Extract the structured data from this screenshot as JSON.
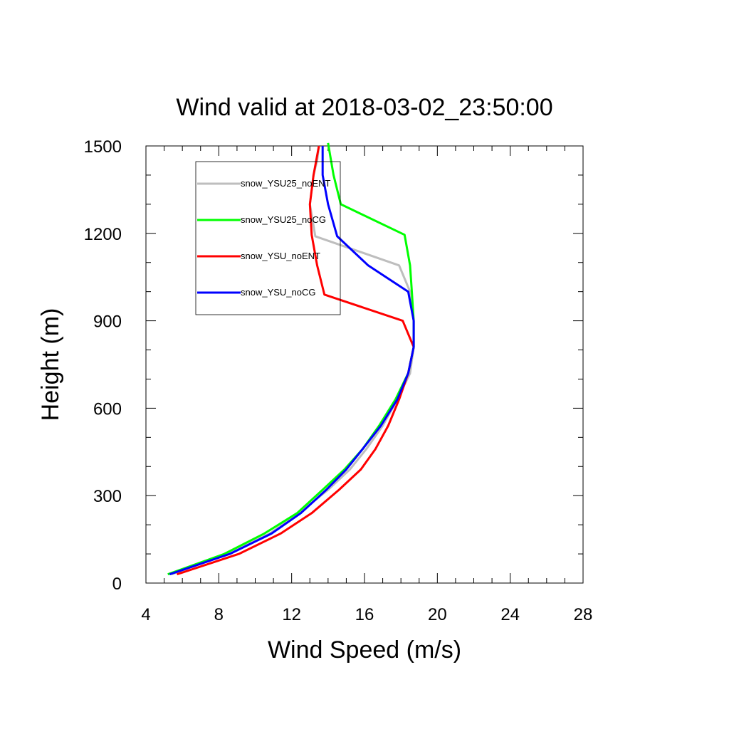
{
  "chart_data": {
    "type": "line",
    "title": "Wind valid at 2018-03-02_23:50:00",
    "xlabel": "Wind Speed (m/s)",
    "ylabel": "Height (m)",
    "xlim": [
      4,
      28
    ],
    "ylim": [
      0,
      1500
    ],
    "xticks": [
      4,
      8,
      12,
      16,
      20,
      24,
      28
    ],
    "yticks": [
      0,
      300,
      600,
      900,
      1200,
      1500
    ],
    "legend_position": "top-left inside",
    "grid": false,
    "series": [
      {
        "name": "snow_YSU25_noENT",
        "color": "#bebebe",
        "x": [
          5.4,
          8.5,
          10.8,
          12.4,
          14.0,
          15.2,
          16.1,
          17.0,
          17.8,
          18.5,
          18.7,
          18.7,
          18.5,
          17.9,
          13.3,
          13.0,
          13.2,
          13.4,
          13.5
        ],
        "y": [
          30,
          100,
          170,
          240,
          320,
          390,
          460,
          540,
          630,
          720,
          810,
          900,
          1000,
          1090,
          1190,
          1300,
          1400,
          1450,
          1500
        ]
      },
      {
        "name": "snow_YSU25_noCG",
        "color": "#00ff00",
        "x": [
          5.2,
          8.3,
          10.5,
          12.3,
          13.7,
          14.9,
          15.9,
          16.8,
          17.7,
          18.4,
          18.7,
          18.7,
          18.6,
          18.5,
          18.2,
          14.7,
          14.3,
          14.0
        ],
        "y": [
          30,
          100,
          170,
          240,
          320,
          390,
          460,
          540,
          630,
          720,
          810,
          900,
          1000,
          1090,
          1195,
          1300,
          1400,
          1510
        ]
      },
      {
        "name": "snow_YSU_noENT",
        "color": "#ff0000",
        "x": [
          5.7,
          9.1,
          11.4,
          13.1,
          14.6,
          15.8,
          16.6,
          17.3,
          17.9,
          18.4,
          18.7,
          18.1,
          13.8,
          13.4,
          13.1,
          13.0,
          13.2,
          13.5
        ],
        "y": [
          30,
          100,
          170,
          240,
          320,
          390,
          460,
          540,
          630,
          720,
          810,
          900,
          990,
          1090,
          1195,
          1300,
          1400,
          1500
        ]
      },
      {
        "name": "snow_YSU_noCG",
        "color": "#0000ff",
        "x": [
          5.3,
          8.6,
          10.9,
          12.5,
          13.9,
          15.0,
          15.9,
          16.9,
          17.8,
          18.4,
          18.7,
          18.7,
          18.4,
          16.2,
          14.5,
          14.0,
          13.7,
          13.7
        ],
        "y": [
          30,
          100,
          170,
          240,
          320,
          390,
          460,
          540,
          630,
          720,
          810,
          900,
          1000,
          1090,
          1190,
          1300,
          1400,
          1500
        ]
      }
    ]
  }
}
